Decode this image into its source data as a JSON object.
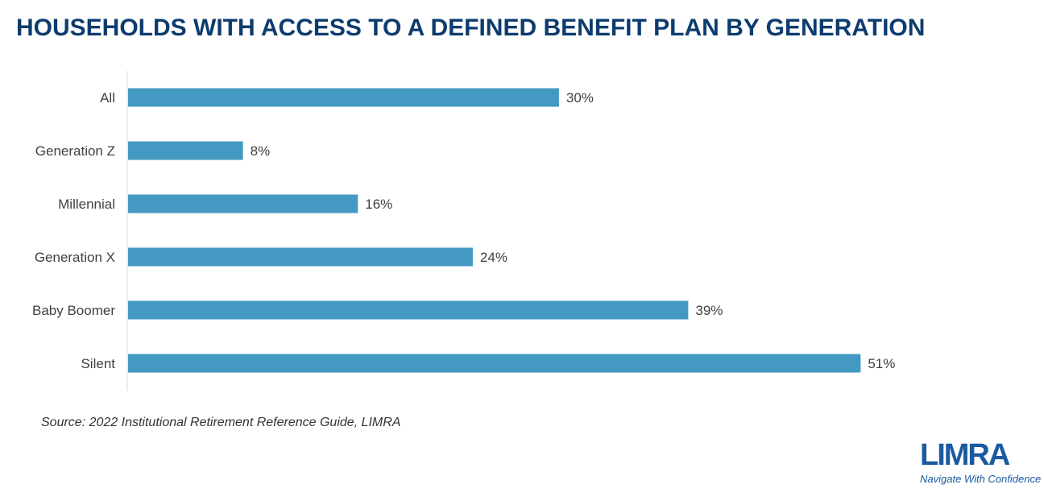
{
  "chart_data": {
    "type": "bar",
    "orientation": "horizontal",
    "title": "HOUSEHOLDS WITH ACCESS TO A DEFINED BENEFIT PLAN BY GENERATION",
    "categories": [
      "All",
      "Generation Z",
      "Millennial",
      "Generation X",
      "Baby Boomer",
      "Silent"
    ],
    "values": [
      30,
      8,
      16,
      24,
      39,
      51
    ],
    "value_labels": [
      "30%",
      "8%",
      "16%",
      "24%",
      "39%",
      "51%"
    ],
    "unit": "%",
    "xlim": [
      0,
      60
    ],
    "bar_color": "#4399c2",
    "grid": false,
    "legend": "none"
  },
  "source": "Source: 2022 Institutional Retirement Reference Guide, LIMRA",
  "logo": {
    "name": "LIMRA",
    "tagline": "Navigate With Confidence",
    "color": "#1a5aa0"
  }
}
